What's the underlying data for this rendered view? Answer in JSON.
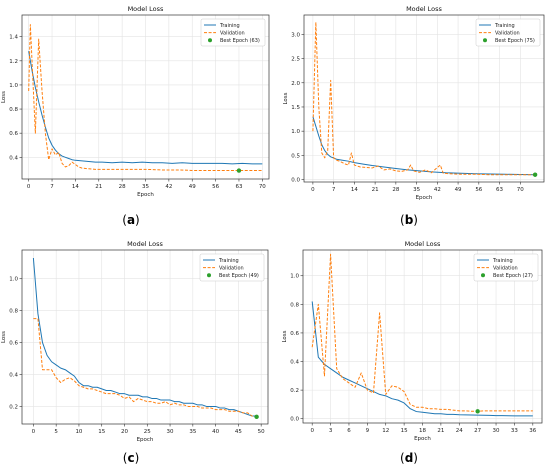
{
  "chart_data": [
    {
      "id": "a",
      "caption": "(a)",
      "type": "line",
      "title": "Model Loss",
      "xlabel": "Epoch",
      "ylabel": "Loss",
      "grid": true,
      "legend_position": "top-right",
      "xlim": [
        -2,
        72
      ],
      "ylim": [
        0.22,
        1.58
      ],
      "xticks": [
        0,
        7,
        14,
        21,
        28,
        35,
        42,
        49,
        56,
        63,
        70
      ],
      "yticks": [
        0.4,
        0.6,
        0.8,
        1.0,
        1.2,
        1.4
      ],
      "series": [
        {
          "name": "Training",
          "style": "solid",
          "color": "#1f77b4",
          "x": [
            0,
            1,
            2,
            3,
            4,
            5,
            6,
            7,
            8,
            9,
            10,
            11,
            12,
            13,
            14,
            16,
            18,
            20,
            22,
            25,
            28,
            31,
            34,
            37,
            40,
            43,
            46,
            49,
            52,
            55,
            58,
            61,
            64,
            67,
            70
          ],
          "y": [
            1.28,
            1.12,
            0.98,
            0.86,
            0.75,
            0.65,
            0.56,
            0.5,
            0.46,
            0.43,
            0.41,
            0.4,
            0.39,
            0.38,
            0.375,
            0.37,
            0.365,
            0.36,
            0.36,
            0.355,
            0.36,
            0.355,
            0.36,
            0.355,
            0.355,
            0.35,
            0.355,
            0.35,
            0.35,
            0.35,
            0.35,
            0.345,
            0.35,
            0.345,
            0.345
          ]
        },
        {
          "name": "Validation",
          "style": "dashed",
          "color": "#ff7f0e",
          "x": [
            0,
            0.5,
            1,
            2,
            3,
            4,
            5,
            6,
            7,
            8,
            9,
            10,
            11,
            12,
            13,
            14,
            15,
            16,
            18,
            20,
            25,
            30,
            35,
            40,
            45,
            50,
            55,
            60,
            63,
            66,
            70
          ],
          "y": [
            0.95,
            1.5,
            1.2,
            0.6,
            1.38,
            0.95,
            0.6,
            0.38,
            0.47,
            0.42,
            0.44,
            0.35,
            0.32,
            0.33,
            0.36,
            0.34,
            0.32,
            0.31,
            0.305,
            0.3,
            0.3,
            0.3,
            0.3,
            0.295,
            0.295,
            0.29,
            0.29,
            0.29,
            0.29,
            0.29,
            0.29
          ]
        }
      ],
      "best": {
        "label": "Best Epoch (63)",
        "x": 63,
        "y": 0.29,
        "color": "#2ca02c"
      }
    },
    {
      "id": "b",
      "caption": "(b)",
      "type": "line",
      "title": "Model Loss",
      "xlabel": "Epoch",
      "ylabel": "Loss",
      "grid": true,
      "legend_position": "top-right",
      "xlim": [
        -3,
        78
      ],
      "ylim": [
        -0.05,
        3.4
      ],
      "xticks": [
        0,
        7,
        14,
        21,
        28,
        35,
        42,
        49,
        56,
        63,
        70
      ],
      "yticks": [
        0.0,
        0.5,
        1.0,
        1.5,
        2.0,
        2.5,
        3.0
      ],
      "series": [
        {
          "name": "Training",
          "style": "solid",
          "color": "#1f77b4",
          "x": [
            0,
            1,
            2,
            3,
            4,
            5,
            6,
            8,
            10,
            12,
            14,
            17,
            20,
            24,
            28,
            32,
            36,
            40,
            45,
            50,
            55,
            60,
            65,
            70,
            75
          ],
          "y": [
            1.3,
            1.1,
            0.9,
            0.72,
            0.6,
            0.52,
            0.47,
            0.42,
            0.4,
            0.38,
            0.35,
            0.32,
            0.29,
            0.26,
            0.23,
            0.2,
            0.18,
            0.16,
            0.14,
            0.13,
            0.12,
            0.115,
            0.11,
            0.105,
            0.1
          ]
        },
        {
          "name": "Validation",
          "style": "dashed",
          "color": "#ff7f0e",
          "x": [
            0,
            1,
            2,
            3,
            4,
            5,
            6,
            7,
            8,
            9,
            10,
            11,
            12,
            13,
            14,
            15,
            16,
            18,
            20,
            22,
            24,
            26,
            28,
            30,
            32,
            33,
            34,
            36,
            38,
            40,
            42,
            43,
            44,
            46,
            50,
            55,
            60,
            65,
            70,
            75
          ],
          "y": [
            1.0,
            3.25,
            1.5,
            0.55,
            0.45,
            0.6,
            2.05,
            0.45,
            0.4,
            0.38,
            0.35,
            0.32,
            0.3,
            0.55,
            0.3,
            0.28,
            0.26,
            0.25,
            0.24,
            0.28,
            0.2,
            0.22,
            0.18,
            0.17,
            0.2,
            0.3,
            0.18,
            0.15,
            0.2,
            0.14,
            0.25,
            0.3,
            0.13,
            0.12,
            0.11,
            0.11,
            0.1,
            0.1,
            0.1,
            0.1
          ]
        }
      ],
      "best": {
        "label": "Best Epoch (75)",
        "x": 75,
        "y": 0.1,
        "color": "#2ca02c"
      }
    },
    {
      "id": "c",
      "caption": "(c)",
      "type": "line",
      "title": "Model Loss",
      "xlabel": "Epoch",
      "ylabel": "Loss",
      "grid": true,
      "legend_position": "top-right",
      "xlim": [
        -2.5,
        51.5
      ],
      "ylim": [
        0.09,
        1.18
      ],
      "xticks": [
        0,
        5,
        10,
        15,
        20,
        25,
        30,
        35,
        40,
        45,
        50
      ],
      "yticks": [
        0.2,
        0.4,
        0.6,
        0.8,
        1.0
      ],
      "series": [
        {
          "name": "Training",
          "style": "solid",
          "color": "#1f77b4",
          "x": [
            0,
            1,
            2,
            3,
            4,
            5,
            6,
            7,
            8,
            9,
            10,
            11,
            12,
            13,
            14,
            15,
            16,
            17,
            18,
            19,
            20,
            21,
            22,
            23,
            24,
            25,
            26,
            27,
            28,
            29,
            30,
            31,
            32,
            33,
            34,
            35,
            36,
            37,
            38,
            39,
            40,
            41,
            42,
            43,
            44,
            45,
            46,
            47,
            48,
            49
          ],
          "y": [
            1.13,
            0.78,
            0.6,
            0.52,
            0.48,
            0.46,
            0.44,
            0.43,
            0.41,
            0.39,
            0.35,
            0.33,
            0.33,
            0.32,
            0.32,
            0.31,
            0.3,
            0.3,
            0.29,
            0.28,
            0.28,
            0.27,
            0.27,
            0.27,
            0.26,
            0.26,
            0.25,
            0.25,
            0.24,
            0.24,
            0.24,
            0.23,
            0.23,
            0.22,
            0.22,
            0.22,
            0.21,
            0.21,
            0.2,
            0.2,
            0.2,
            0.19,
            0.19,
            0.18,
            0.18,
            0.17,
            0.16,
            0.15,
            0.14,
            0.14
          ]
        },
        {
          "name": "Validation",
          "style": "dashed",
          "color": "#ff7f0e",
          "x": [
            0,
            1,
            2,
            3,
            4,
            5,
            6,
            7,
            8,
            9,
            10,
            11,
            12,
            13,
            14,
            15,
            16,
            17,
            18,
            19,
            20,
            21,
            22,
            23,
            24,
            25,
            26,
            27,
            28,
            29,
            30,
            31,
            32,
            33,
            34,
            35,
            36,
            37,
            38,
            39,
            40,
            41,
            42,
            43,
            44,
            45,
            46,
            47,
            48,
            49
          ],
          "y": [
            0.75,
            0.75,
            0.43,
            0.43,
            0.43,
            0.38,
            0.35,
            0.37,
            0.38,
            0.36,
            0.33,
            0.32,
            0.31,
            0.31,
            0.3,
            0.29,
            0.28,
            0.28,
            0.28,
            0.27,
            0.25,
            0.26,
            0.23,
            0.25,
            0.24,
            0.23,
            0.23,
            0.22,
            0.22,
            0.23,
            0.21,
            0.22,
            0.21,
            0.21,
            0.2,
            0.2,
            0.2,
            0.19,
            0.19,
            0.19,
            0.18,
            0.18,
            0.18,
            0.17,
            0.17,
            0.17,
            0.16,
            0.16,
            0.14,
            0.135
          ]
        }
      ],
      "best": {
        "label": "Best Epoch (49)",
        "x": 49,
        "y": 0.135,
        "color": "#2ca02c"
      }
    },
    {
      "id": "d",
      "caption": "(d)",
      "type": "line",
      "title": "Model Loss",
      "xlabel": "Epoch",
      "ylabel": "Loss",
      "grid": true,
      "legend_position": "top-right",
      "xlim": [
        -1.5,
        37.5
      ],
      "ylim": [
        -0.03,
        1.18
      ],
      "xticks": [
        0,
        3,
        6,
        9,
        12,
        15,
        18,
        21,
        24,
        27,
        30,
        33,
        36
      ],
      "yticks": [
        0.0,
        0.2,
        0.4,
        0.6,
        0.8,
        1.0
      ],
      "series": [
        {
          "name": "Training",
          "style": "solid",
          "color": "#1f77b4",
          "x": [
            0,
            1,
            2,
            3,
            4,
            5,
            6,
            7,
            8,
            9,
            10,
            11,
            12,
            13,
            14,
            15,
            16,
            17,
            18,
            19,
            20,
            21,
            22,
            23,
            24,
            25,
            26,
            27,
            28,
            29,
            30,
            31,
            32,
            33,
            34,
            35,
            36
          ],
          "y": [
            0.82,
            0.43,
            0.38,
            0.35,
            0.32,
            0.29,
            0.27,
            0.25,
            0.23,
            0.21,
            0.19,
            0.17,
            0.16,
            0.14,
            0.13,
            0.11,
            0.07,
            0.05,
            0.045,
            0.04,
            0.035,
            0.035,
            0.03,
            0.03,
            0.028,
            0.027,
            0.026,
            0.025,
            0.024,
            0.023,
            0.022,
            0.022,
            0.021,
            0.02,
            0.02,
            0.02,
            0.02
          ]
        },
        {
          "name": "Validation",
          "style": "dashed",
          "color": "#ff7f0e",
          "x": [
            0,
            1,
            2,
            3,
            4,
            5,
            6,
            7,
            8,
            9,
            10,
            11,
            12,
            13,
            14,
            15,
            16,
            17,
            18,
            19,
            20,
            21,
            22,
            23,
            24,
            25,
            26,
            27,
            28,
            29,
            30,
            31,
            32,
            33,
            34,
            35,
            36
          ],
          "y": [
            0.5,
            0.8,
            0.3,
            1.15,
            0.35,
            0.28,
            0.25,
            0.22,
            0.32,
            0.2,
            0.18,
            0.74,
            0.17,
            0.23,
            0.22,
            0.19,
            0.1,
            0.08,
            0.08,
            0.07,
            0.07,
            0.065,
            0.065,
            0.06,
            0.055,
            0.055,
            0.052,
            0.052,
            0.055,
            0.055,
            0.055,
            0.055,
            0.055,
            0.055,
            0.055,
            0.055,
            0.055
          ]
        }
      ],
      "best": {
        "label": "Best Epoch (27)",
        "x": 27,
        "y": 0.052,
        "color": "#2ca02c"
      }
    }
  ]
}
